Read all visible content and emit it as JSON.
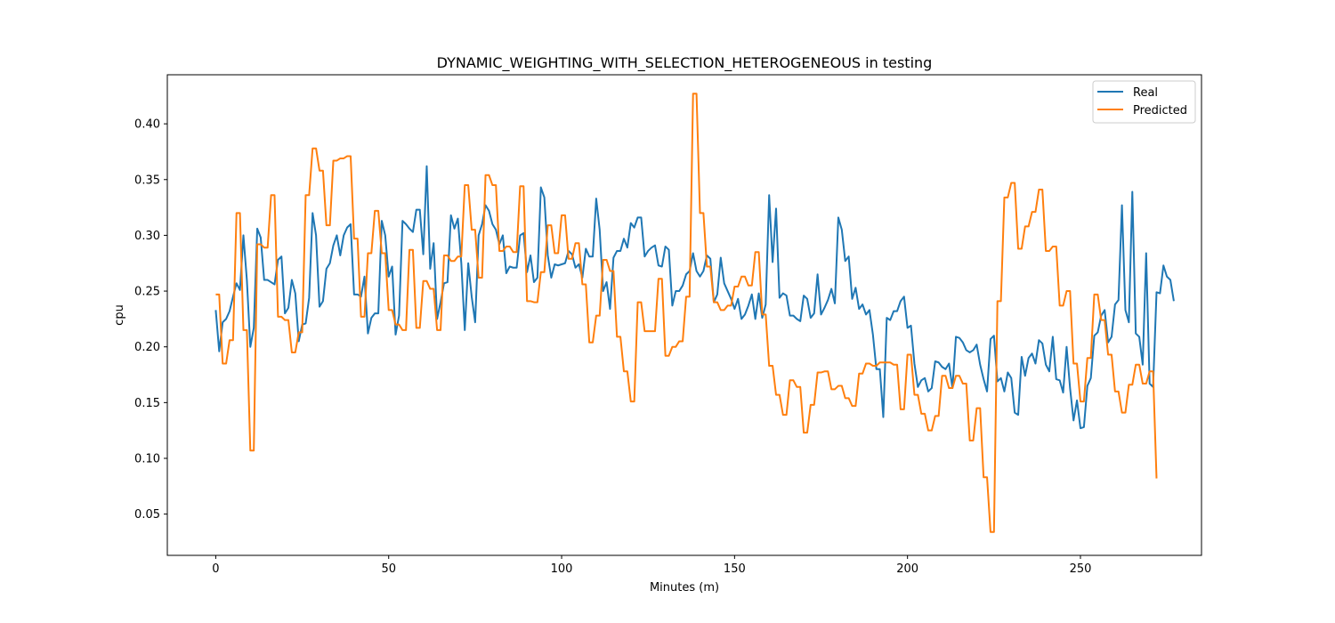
{
  "chart_data": {
    "type": "line",
    "title": "DYNAMIC_WEIGHTING_WITH_SELECTION_HETEROGENEOUS in testing",
    "xlabel": "Minutes (m)",
    "ylabel": "cpu",
    "xlim": [
      -14,
      285
    ],
    "ylim": [
      0.013,
      0.444
    ],
    "xticks": [
      0,
      50,
      100,
      150,
      200,
      250
    ],
    "yticks": [
      0.05,
      0.1,
      0.15,
      0.2,
      0.25,
      0.3,
      0.35,
      0.4
    ],
    "ytick_labels": [
      "0.05",
      "0.10",
      "0.15",
      "0.20",
      "0.25",
      "0.30",
      "0.35",
      "0.40"
    ],
    "grid": false,
    "legend_position": "top-right",
    "series": [
      {
        "name": "Real",
        "color": "#1f77b4",
        "values": [
          0.233,
          0.196,
          0.222,
          0.225,
          0.232,
          0.245,
          0.257,
          0.251,
          0.3,
          0.26,
          0.2,
          0.217,
          0.306,
          0.298,
          0.26,
          0.26,
          0.258,
          0.256,
          0.278,
          0.281,
          0.23,
          0.235,
          0.26,
          0.248,
          0.205,
          0.22,
          0.221,
          0.244,
          0.32,
          0.3,
          0.236,
          0.241,
          0.27,
          0.275,
          0.291,
          0.3,
          0.282,
          0.3,
          0.307,
          0.31,
          0.247,
          0.247,
          0.245,
          0.263,
          0.212,
          0.226,
          0.23,
          0.23,
          0.313,
          0.3,
          0.263,
          0.272,
          0.211,
          0.228,
          0.313,
          0.31,
          0.306,
          0.303,
          0.323,
          0.323,
          0.283,
          0.362,
          0.27,
          0.293,
          0.225,
          0.24,
          0.257,
          0.258,
          0.318,
          0.306,
          0.315,
          0.275,
          0.215,
          0.275,
          0.245,
          0.222,
          0.3,
          0.31,
          0.327,
          0.322,
          0.31,
          0.305,
          0.292,
          0.3,
          0.266,
          0.272,
          0.271,
          0.271,
          0.3,
          0.302,
          0.267,
          0.282,
          0.258,
          0.262,
          0.343,
          0.334,
          0.282,
          0.262,
          0.274,
          0.273,
          0.274,
          0.275,
          0.286,
          0.283,
          0.271,
          0.274,
          0.262,
          0.288,
          0.281,
          0.281,
          0.333,
          0.305,
          0.25,
          0.258,
          0.234,
          0.28,
          0.286,
          0.286,
          0.297,
          0.289,
          0.311,
          0.307,
          0.316,
          0.316,
          0.281,
          0.286,
          0.289,
          0.291,
          0.273,
          0.272,
          0.29,
          0.287,
          0.237,
          0.25,
          0.25,
          0.255,
          0.265,
          0.268,
          0.284,
          0.268,
          0.263,
          0.268,
          0.282,
          0.279,
          0.24,
          0.247,
          0.28,
          0.257,
          0.25,
          0.243,
          0.234,
          0.243,
          0.225,
          0.229,
          0.237,
          0.247,
          0.225,
          0.248,
          0.226,
          0.238,
          0.336,
          0.276,
          0.324,
          0.244,
          0.248,
          0.246,
          0.228,
          0.228,
          0.225,
          0.223,
          0.246,
          0.243,
          0.226,
          0.23,
          0.265,
          0.229,
          0.235,
          0.242,
          0.252,
          0.239,
          0.316,
          0.305,
          0.277,
          0.281,
          0.243,
          0.253,
          0.234,
          0.238,
          0.229,
          0.233,
          0.211,
          0.18,
          0.18,
          0.137,
          0.226,
          0.224,
          0.232,
          0.232,
          0.241,
          0.245,
          0.217,
          0.219,
          0.185,
          0.164,
          0.17,
          0.172,
          0.16,
          0.163,
          0.187,
          0.186,
          0.182,
          0.18,
          0.185,
          0.163,
          0.209,
          0.208,
          0.204,
          0.197,
          0.195,
          0.197,
          0.202,
          0.184,
          0.171,
          0.16,
          0.207,
          0.21,
          0.169,
          0.172,
          0.16,
          0.177,
          0.172,
          0.141,
          0.139,
          0.191,
          0.174,
          0.19,
          0.194,
          0.185,
          0.206,
          0.203,
          0.184,
          0.178,
          0.209,
          0.171,
          0.17,
          0.159,
          0.2,
          0.163,
          0.134,
          0.152,
          0.127,
          0.128,
          0.165,
          0.172,
          0.21,
          0.213,
          0.228,
          0.233,
          0.204,
          0.209,
          0.238,
          0.242,
          0.327,
          0.233,
          0.222,
          0.339,
          0.212,
          0.209,
          0.184,
          0.284,
          0.167,
          0.164,
          0.249,
          0.248,
          0.273,
          0.263,
          0.26,
          0.241
        ]
      },
      {
        "name": "Predicted",
        "color": "#ff7f0e",
        "values": [
          0.247,
          0.247,
          0.185,
          0.185,
          0.206,
          0.206,
          0.32,
          0.32,
          0.215,
          0.215,
          0.107,
          0.107,
          0.292,
          0.292,
          0.289,
          0.289,
          0.336,
          0.336,
          0.227,
          0.227,
          0.224,
          0.224,
          0.195,
          0.195,
          0.213,
          0.213,
          0.336,
          0.336,
          0.378,
          0.378,
          0.358,
          0.358,
          0.309,
          0.309,
          0.367,
          0.367,
          0.369,
          0.369,
          0.371,
          0.371,
          0.297,
          0.297,
          0.227,
          0.227,
          0.284,
          0.284,
          0.322,
          0.322,
          0.284,
          0.284,
          0.233,
          0.233,
          0.22,
          0.22,
          0.215,
          0.215,
          0.287,
          0.287,
          0.217,
          0.217,
          0.259,
          0.259,
          0.252,
          0.252,
          0.215,
          0.215,
          0.282,
          0.282,
          0.277,
          0.277,
          0.281,
          0.281,
          0.345,
          0.345,
          0.305,
          0.305,
          0.262,
          0.262,
          0.354,
          0.354,
          0.345,
          0.345,
          0.286,
          0.286,
          0.29,
          0.29,
          0.285,
          0.285,
          0.344,
          0.344,
          0.241,
          0.241,
          0.24,
          0.24,
          0.267,
          0.267,
          0.309,
          0.309,
          0.284,
          0.284,
          0.318,
          0.318,
          0.279,
          0.279,
          0.293,
          0.293,
          0.256,
          0.256,
          0.204,
          0.204,
          0.228,
          0.228,
          0.278,
          0.278,
          0.268,
          0.268,
          0.209,
          0.209,
          0.178,
          0.178,
          0.151,
          0.151,
          0.24,
          0.24,
          0.214,
          0.214,
          0.214,
          0.214,
          0.261,
          0.261,
          0.192,
          0.192,
          0.2,
          0.2,
          0.205,
          0.205,
          0.245,
          0.245,
          0.427,
          0.427,
          0.32,
          0.32,
          0.272,
          0.272,
          0.24,
          0.24,
          0.233,
          0.233,
          0.237,
          0.237,
          0.254,
          0.254,
          0.263,
          0.263,
          0.255,
          0.255,
          0.285,
          0.285,
          0.229,
          0.229,
          0.183,
          0.183,
          0.157,
          0.157,
          0.139,
          0.139,
          0.17,
          0.17,
          0.164,
          0.164,
          0.123,
          0.123,
          0.148,
          0.148,
          0.177,
          0.177,
          0.178,
          0.178,
          0.162,
          0.162,
          0.165,
          0.165,
          0.154,
          0.154,
          0.147,
          0.147,
          0.176,
          0.176,
          0.185,
          0.185,
          0.183,
          0.183,
          0.186,
          0.186,
          0.186,
          0.186,
          0.184,
          0.184,
          0.144,
          0.144,
          0.193,
          0.193,
          0.157,
          0.157,
          0.14,
          0.14,
          0.125,
          0.125,
          0.138,
          0.138,
          0.174,
          0.174,
          0.163,
          0.163,
          0.174,
          0.174,
          0.167,
          0.167,
          0.116,
          0.116,
          0.145,
          0.145,
          0.083,
          0.083,
          0.034,
          0.034,
          0.241,
          0.241,
          0.334,
          0.334,
          0.347,
          0.347,
          0.288,
          0.288,
          0.308,
          0.308,
          0.321,
          0.321,
          0.341,
          0.341,
          0.286,
          0.286,
          0.29,
          0.29,
          0.237,
          0.237,
          0.25,
          0.25,
          0.185,
          0.185,
          0.151,
          0.151,
          0.19,
          0.19,
          0.247,
          0.247,
          0.224,
          0.224,
          0.193,
          0.193,
          0.16,
          0.16,
          0.141,
          0.141,
          0.166,
          0.166,
          0.184,
          0.184,
          0.167,
          0.167,
          0.178,
          0.178,
          0.082
        ]
      }
    ]
  }
}
